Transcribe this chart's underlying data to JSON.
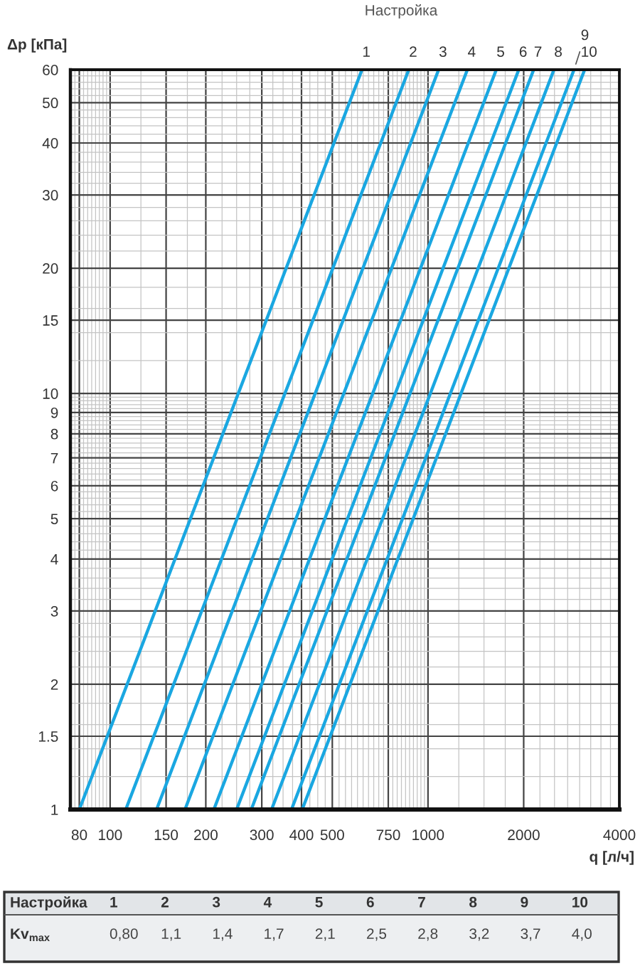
{
  "chart_data": [
    {
      "type": "line",
      "title": "Настройка",
      "xlabel": "q [л/ч]",
      "ylabel": "Δp [кПа]",
      "log": "xy",
      "xlim": [
        75,
        4000
      ],
      "ylim": [
        1,
        60
      ],
      "xticks": [
        80,
        100,
        150,
        200,
        300,
        400,
        500,
        750,
        1000,
        2000,
        4000
      ],
      "yticks": [
        1,
        1.5,
        2,
        3,
        4,
        5,
        6,
        7,
        8,
        9,
        10,
        15,
        20,
        30,
        40,
        50,
        60
      ],
      "grid": true,
      "series": [
        {
          "name": "1",
          "color": "#1aa7e1",
          "x": [
            80,
            620
          ],
          "values": [
            1,
            60
          ]
        },
        {
          "name": "2",
          "color": "#1aa7e1",
          "x": [
            112,
            870
          ],
          "values": [
            1,
            60
          ]
        },
        {
          "name": "3",
          "color": "#1aa7e1",
          "x": [
            140,
            1080
          ],
          "values": [
            1,
            60
          ]
        },
        {
          "name": "4",
          "color": "#1aa7e1",
          "x": [
            172,
            1330
          ],
          "values": [
            1,
            60
          ]
        },
        {
          "name": "5",
          "color": "#1aa7e1",
          "x": [
            212,
            1640
          ],
          "values": [
            1,
            60
          ]
        },
        {
          "name": "6",
          "color": "#1aa7e1",
          "x": [
            250,
            1930
          ],
          "values": [
            1,
            60
          ]
        },
        {
          "name": "7",
          "color": "#1aa7e1",
          "x": [
            278,
            2150
          ],
          "values": [
            1,
            60
          ]
        },
        {
          "name": "8",
          "color": "#1aa7e1",
          "x": [
            322,
            2490
          ],
          "values": [
            1,
            60
          ]
        },
        {
          "name": "9",
          "color": "#1aa7e1",
          "x": [
            372,
            2880
          ],
          "values": [
            1,
            60
          ]
        },
        {
          "name": "10",
          "color": "#1aa7e1",
          "x": [
            402,
            3110
          ],
          "values": [
            1,
            60
          ]
        }
      ]
    },
    {
      "type": "heatmap",
      "xlabel": "Настройка",
      "categories": [
        "1",
        "2",
        "3",
        "4",
        "5",
        "6",
        "7",
        "8",
        "9",
        "10"
      ],
      "y_categories": [
        "Kv$_{max}$"
      ],
      "cells": [
        [
          null,
          null,
          null,
          null,
          null,
          null,
          null,
          null,
          null,
          null
        ]
      ],
      "cell_labels": [
        [
          "0,80",
          "1,1",
          "1,4",
          "1,7",
          "2,1",
          "2,5",
          "2,8",
          "3,2",
          "3,7",
          "4,0"
        ]
      ]
    }
  ]
}
